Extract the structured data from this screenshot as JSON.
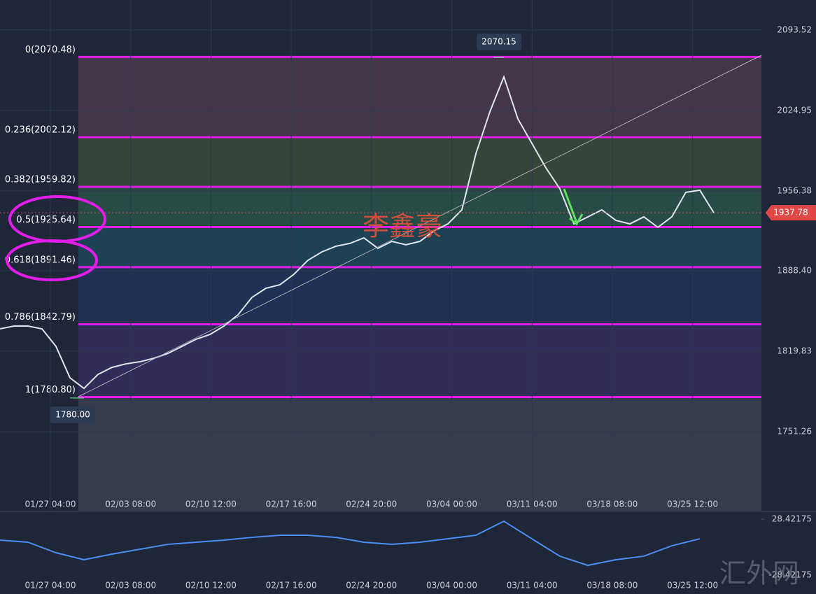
{
  "chart_data": [
    {
      "type": "line",
      "x_labels": [
        "01/27 04:00",
        "02/03 08:00",
        "02/10 12:00",
        "02/17 16:00",
        "02/24 20:00",
        "03/04 00:00",
        "03/11 04:00",
        "03/18 08:00",
        "03/25 12:00"
      ],
      "series": [
        {
          "color": "#dfe6f0",
          "values": [
            1838.9,
            1841.3,
            1841.3,
            1838.9,
            1824.0,
            1797.2,
            1788.2,
            1800.1,
            1806.1,
            1809.1,
            1810.9,
            1813.9,
            1818.0,
            1824.0,
            1830.0,
            1834.1,
            1841.3,
            1850.8,
            1865.7,
            1873.5,
            1876.5,
            1885.4,
            1897.3,
            1904.5,
            1909.3,
            1911.7,
            1916.4,
            1907.5,
            1913.4,
            1910.5,
            1913.4,
            1922.4,
            1928.3,
            1940.3,
            1988.0,
            2023.8,
            2053.6,
            2017.8,
            1996.9,
            1976.1,
            1958.2,
            1928.3,
            1934.3,
            1940.3,
            1931.3,
            1928.3,
            1934.3,
            1925.4,
            1934.3,
            1955.2,
            1957.0,
            1937.8
          ]
        }
      ],
      "ylim": [
        1684,
        2119
      ],
      "yticks": [
        2093.52,
        2024.95,
        1956.38,
        {
          "value": 1888.4,
          "label": "1888.40"
        },
        1819.83,
        1751.26
      ],
      "grid": true,
      "fib_levels": [
        {
          "value": 2070.48,
          "label": "0(2070.48)"
        },
        {
          "value": 2002.12,
          "label": "0.236(2002.12)"
        },
        {
          "value": 1959.82,
          "label": "0.382(1959.82)"
        },
        {
          "value": 1925.64,
          "label": "0.5(1925.64)"
        },
        {
          "value": 1891.46,
          "label": "0.618(1891.46)"
        },
        {
          "value": 1842.79,
          "label": "0.786(1842.79)"
        },
        {
          "value": 1780.8,
          "label": "1(1780.80)"
        }
      ],
      "fib_color": "#e01ee8",
      "high": 2070.15,
      "low": {
        "value": 1780,
        "label": "1780.00"
      },
      "last_price": 1937.78
    },
    {
      "type": "line",
      "x_labels": [
        "01/27 04:00",
        "02/03 08:00",
        "02/10 12:00",
        "02/17 16:00",
        "02/24 20:00",
        "03/04 00:00",
        "03/11 04:00",
        "03/18 08:00",
        "03/25 12:00"
      ],
      "series": [
        {
          "color": "#4d8cf0",
          "values": [
            7.1,
            5.0,
            -5.7,
            -12.8,
            -7.1,
            -2.1,
            2.8,
            5.0,
            7.1,
            9.9,
            12.1,
            12.1,
            9.9,
            5.0,
            2.8,
            5.0,
            8.5,
            12.1,
            26.3,
            8.5,
            -9.2,
            -18.5,
            -12.8,
            -9.2,
            1.4,
            8.5
          ]
        }
      ],
      "ylim": [
        -28.42175,
        28.42175
      ],
      "yticks": [
        28.42175,
        -28.42175
      ]
    }
  ],
  "watermarks": [
    "李鑫豪",
    "汇外网"
  ]
}
